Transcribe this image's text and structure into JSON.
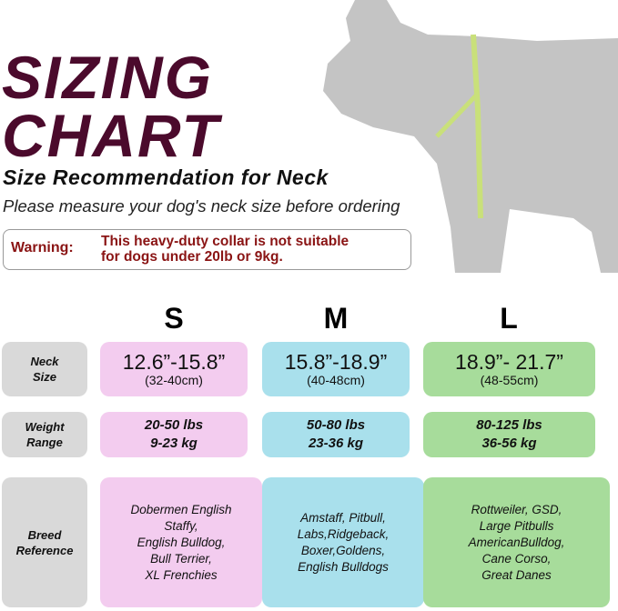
{
  "title": {
    "line1": "SIZING",
    "line2": "CHART"
  },
  "subtitle": "Size Recommendation for Neck",
  "instruction": "Please measure your dog's neck size before ordering",
  "warning": {
    "label": "Warning:",
    "line1": "This heavy-duty collar is not suitable",
    "line2": "for dogs under 20lb or 9kg."
  },
  "colors": {
    "title": "#4b0a2c",
    "warning": "#8a1414",
    "S": "#f3ccef",
    "M": "#a9e0ec",
    "L": "#a7dc9b",
    "label": "#d9d9d9"
  },
  "table": {
    "sizes": [
      "S",
      "M",
      "L"
    ],
    "row_labels": [
      {
        "line1": "Neck",
        "line2": "Size"
      },
      {
        "line1": "Weight",
        "line2": "Range"
      },
      {
        "line1": "Breed",
        "line2": "Reference"
      }
    ],
    "neck": [
      {
        "in": "12.6”-15.8”",
        "cm": "(32-40cm)"
      },
      {
        "in": "15.8”-18.9”",
        "cm": "(40-48cm)"
      },
      {
        "in": "18.9”- 21.7”",
        "cm": "(48-55cm)"
      }
    ],
    "weight": [
      {
        "lbs": "20-50 lbs",
        "kg": "9-23 kg"
      },
      {
        "lbs": "50-80 lbs",
        "kg": "23-36 kg"
      },
      {
        "lbs": "80-125 lbs",
        "kg": "36-56 kg"
      }
    ],
    "breeds": [
      [
        "Dobermen English",
        "Staffy,",
        "English Bulldog,",
        "Bull Terrier,",
        "XL Frenchies"
      ],
      [
        "Amstaff, Pitbull,",
        "Labs,Ridgeback,",
        "Boxer,Goldens,",
        "English Bulldogs"
      ],
      [
        "Rottweiler, GSD,",
        "Large Pitbulls",
        "AmericanBulldog,",
        "Cane Corso,",
        "Great Danes"
      ]
    ]
  }
}
